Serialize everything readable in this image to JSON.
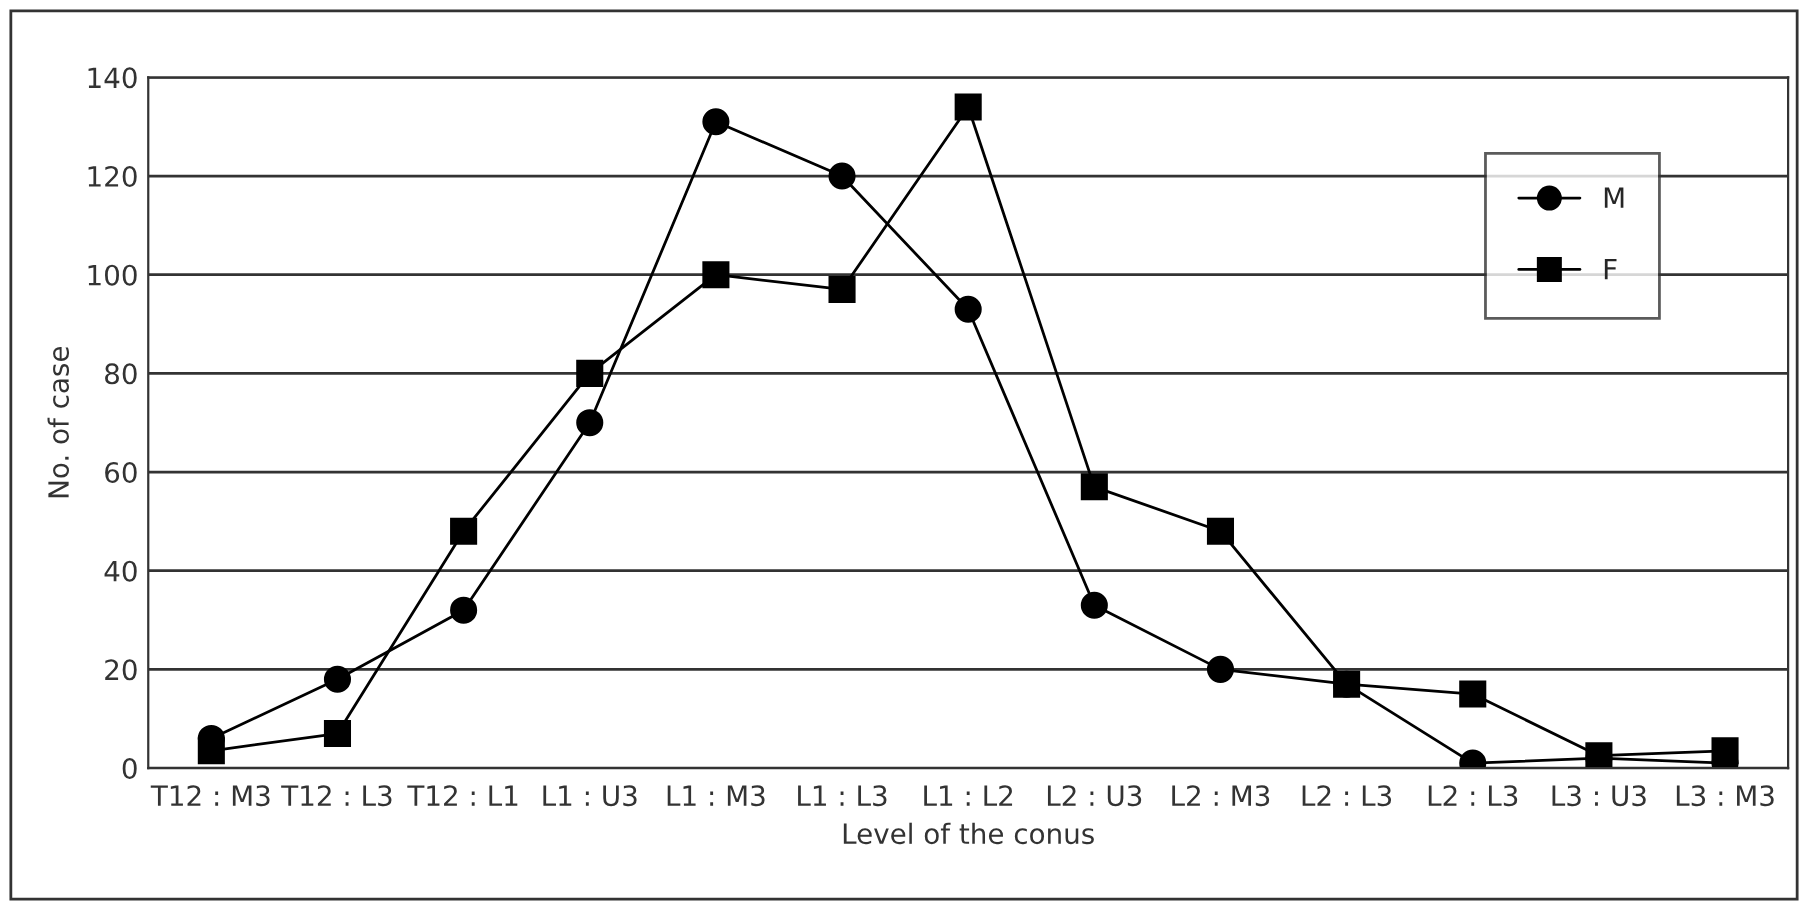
{
  "chart_data": {
    "type": "line",
    "xlabel": "Level of the conus",
    "ylabel": "No. of case",
    "categories": [
      "T12 : M3",
      "T12 : L3",
      "T12 : L1",
      "L1 : U3",
      "L1 : M3",
      "L1 : L3",
      "L1 : L2",
      "L2 : U3",
      "L2 : M3",
      "L2 : L3",
      "L2 : L3",
      "L3 : U3",
      "L3 : M3"
    ],
    "series": [
      {
        "name": "M",
        "color": "#000000",
        "marker": "circle",
        "values": [
          6,
          18,
          32,
          70,
          131,
          120,
          93,
          33,
          20,
          17,
          1,
          2,
          1
        ]
      },
      {
        "name": "F",
        "color": "#000000",
        "marker": "square",
        "values": [
          3.5,
          7,
          48,
          80,
          100,
          97,
          134,
          57,
          48,
          17,
          15,
          2.5,
          3.5
        ]
      }
    ],
    "ylim": [
      0,
      140
    ],
    "yticks": [
      0,
      20,
      40,
      60,
      80,
      100,
      120,
      140
    ],
    "grid": "y",
    "legend": "top right",
    "line_style": "solid"
  }
}
